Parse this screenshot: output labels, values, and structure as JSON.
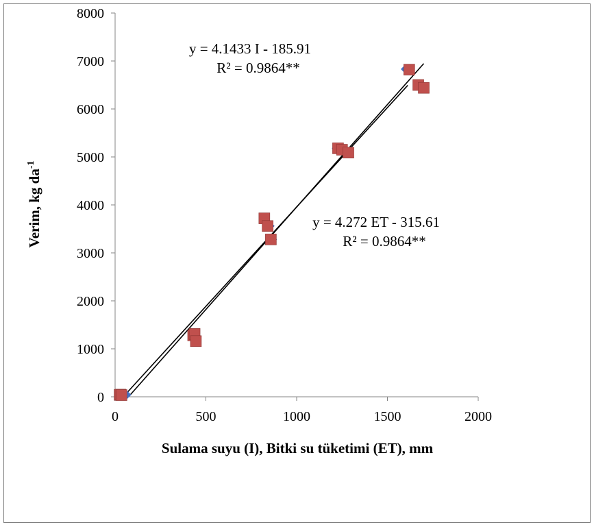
{
  "chart_data": {
    "type": "scatter",
    "xlabel": "Sulama suyu (I), Bitki su tüketimi (ET), mm",
    "ylabel_main": "Verim, kg da",
    "ylabel_sup": "-1",
    "xlim": [
      0,
      2000
    ],
    "ylim": [
      0,
      8000
    ],
    "xticks": [
      0,
      500,
      1000,
      1500,
      2000
    ],
    "yticks": [
      0,
      1000,
      2000,
      3000,
      4000,
      5000,
      6000,
      7000,
      8000
    ],
    "grid": false,
    "series": [
      {
        "marker": "diamond",
        "color": "#4472C4",
        "x": [
          62,
          60,
          447,
          438,
          865,
          852,
          1220,
          1228,
          1600,
          1612
        ],
        "y": [
          40,
          50,
          1180,
          1280,
          3280,
          3560,
          5180,
          5150,
          6830,
          6820
        ],
        "trendline": {
          "slope": 4.1433,
          "intercept": -185.91
        }
      },
      {
        "marker": "square",
        "color": "#C0504D",
        "x": [
          25,
          30,
          35,
          430,
          438,
          445,
          822,
          840,
          858,
          1228,
          1250,
          1285,
          1620,
          1670,
          1700
        ],
        "y": [
          40,
          45,
          35,
          1280,
          1310,
          1160,
          3720,
          3560,
          3280,
          5180,
          5150,
          5090,
          6820,
          6500,
          6440
        ],
        "trendline": {
          "slope": 4.272,
          "intercept": -315.61
        }
      }
    ],
    "annotations": {
      "eq1_line1": "y = 4.1433 I - 185.91",
      "eq1_line2": "R² = 0.9864**",
      "eq2_line1": "y = 4.272 ET - 315.61",
      "eq2_line2": "R² = 0.9864**"
    }
  }
}
